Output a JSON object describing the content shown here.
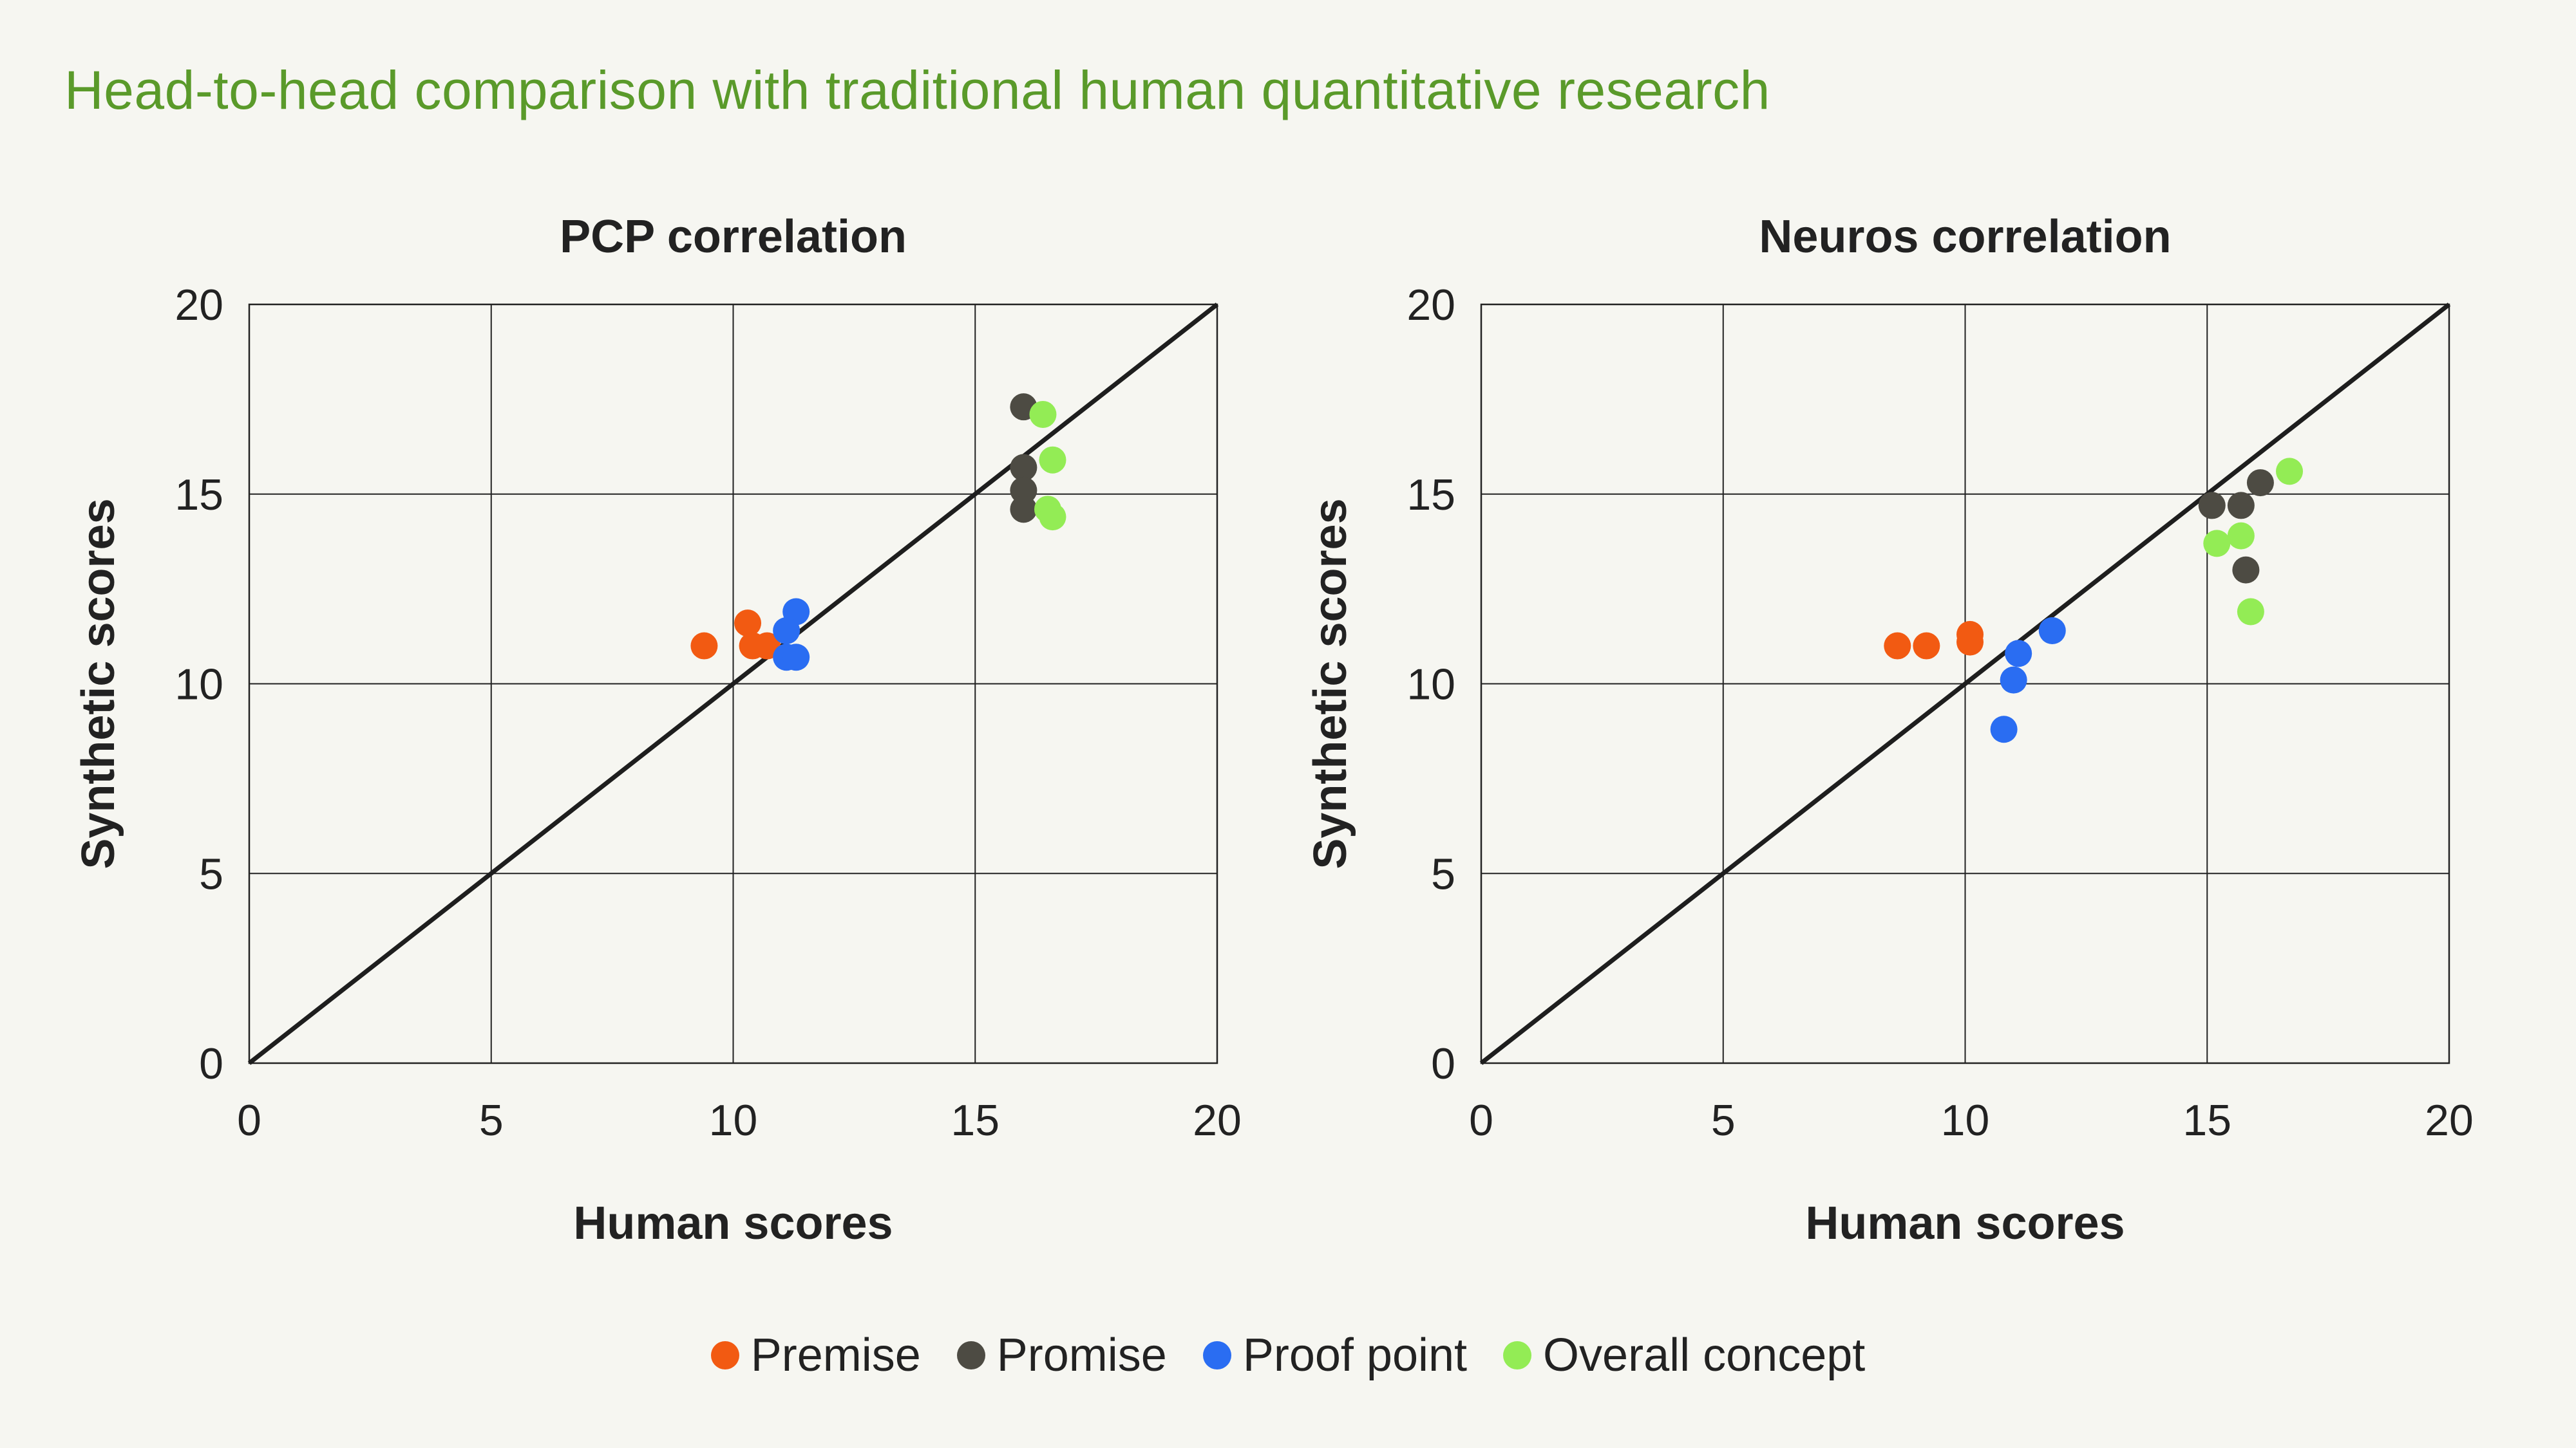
{
  "title": "Head-to-head comparison with traditional human quantitative research",
  "legend": [
    {
      "label": "Premise",
      "color": "#f25a12"
    },
    {
      "label": "Promise",
      "color": "#4d4b43"
    },
    {
      "label": "Proof point",
      "color": "#2a6df2"
    },
    {
      "label": "Overall concept",
      "color": "#93ec55"
    }
  ],
  "chart_data": [
    {
      "type": "scatter",
      "title": "PCP correlation",
      "xlabel": "Human scores",
      "ylabel": "Synthetic scores",
      "xlim": [
        0,
        20
      ],
      "ylim": [
        0,
        20
      ],
      "xticks": [
        0,
        5,
        10,
        15,
        20
      ],
      "yticks": [
        0,
        5,
        10,
        15,
        20
      ],
      "grid": true,
      "reference_line": [
        [
          0,
          0
        ],
        [
          20,
          20
        ]
      ],
      "series": [
        {
          "name": "Premise",
          "color": "#f25a12",
          "points": [
            [
              9.4,
              11.0
            ],
            [
              10.3,
              11.6
            ],
            [
              10.4,
              11.0
            ],
            [
              10.7,
              11.0
            ]
          ]
        },
        {
          "name": "Promise",
          "color": "#4d4b43",
          "points": [
            [
              16.0,
              17.3
            ],
            [
              16.0,
              15.7
            ],
            [
              16.0,
              15.1
            ],
            [
              16.0,
              14.6
            ]
          ]
        },
        {
          "name": "Proof point",
          "color": "#2a6df2",
          "points": [
            [
              11.3,
              11.9
            ],
            [
              11.1,
              11.4
            ],
            [
              11.1,
              10.7
            ],
            [
              11.3,
              10.7
            ]
          ]
        },
        {
          "name": "Overall concept",
          "color": "#93ec55",
          "points": [
            [
              16.4,
              17.1
            ],
            [
              16.6,
              15.9
            ],
            [
              16.5,
              14.6
            ],
            [
              16.6,
              14.4
            ]
          ]
        }
      ]
    },
    {
      "type": "scatter",
      "title": "Neuros correlation",
      "xlabel": "Human scores",
      "ylabel": "Synthetic scores",
      "xlim": [
        0,
        20
      ],
      "ylim": [
        0,
        20
      ],
      "xticks": [
        0,
        5,
        10,
        15,
        20
      ],
      "yticks": [
        0,
        5,
        10,
        15,
        20
      ],
      "grid": true,
      "reference_line": [
        [
          0,
          0
        ],
        [
          20,
          20
        ]
      ],
      "series": [
        {
          "name": "Premise",
          "color": "#f25a12",
          "points": [
            [
              8.6,
              11.0
            ],
            [
              9.2,
              11.0
            ],
            [
              10.1,
              11.3
            ],
            [
              10.1,
              11.1
            ]
          ]
        },
        {
          "name": "Promise",
          "color": "#4d4b43",
          "points": [
            [
              15.1,
              14.7
            ],
            [
              15.7,
              14.7
            ],
            [
              16.1,
              15.3
            ],
            [
              15.8,
              13.0
            ]
          ]
        },
        {
          "name": "Proof point",
          "color": "#2a6df2",
          "points": [
            [
              11.8,
              11.4
            ],
            [
              11.1,
              10.8
            ],
            [
              11.0,
              10.1
            ],
            [
              10.8,
              8.8
            ]
          ]
        },
        {
          "name": "Overall concept",
          "color": "#93ec55",
          "points": [
            [
              16.7,
              15.6
            ],
            [
              15.7,
              13.9
            ],
            [
              15.2,
              13.7
            ],
            [
              15.9,
              11.9
            ]
          ]
        }
      ]
    }
  ]
}
